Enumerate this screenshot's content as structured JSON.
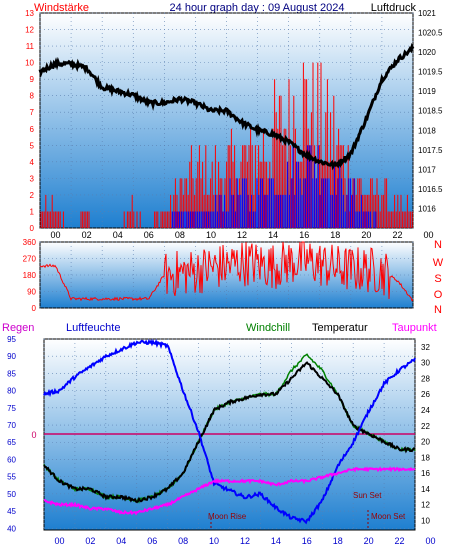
{
  "header": {
    "left_title": "Windstärke",
    "center_title": "24 hour graph day : 09 August 2024",
    "right_title": "Luftdruck"
  },
  "x_ticks": [
    "00",
    "02",
    "04",
    "06",
    "08",
    "10",
    "12",
    "14",
    "16",
    "18",
    "20",
    "22",
    "00"
  ],
  "colors": {
    "panel_top": "#ffffff",
    "panel_bottom": "#1e7fd0",
    "wind": "#ff0000",
    "gust": "#0000ff",
    "pressure": "#000000",
    "humidity": "#0000ff",
    "temperature": "#000000",
    "windchill": "#008000",
    "dewpoint": "#ff00ff",
    "rain": "#cc0055",
    "moon": "#990000"
  },
  "chart_data": [
    {
      "type": "line",
      "left_axis_label": "Windstärke",
      "right_axis_label": "Luftdruck",
      "left_ticks": [
        "13",
        "12",
        "11",
        "10",
        "9",
        "8",
        "7",
        "6",
        "5",
        "4",
        "3",
        "2",
        "1",
        "0"
      ],
      "right_ticks": [
        "1021",
        "1020.5",
        "1020",
        "1019.5",
        "1019",
        "1018.5",
        "1018",
        "1017.5",
        "1017",
        "1016.5",
        "1016"
      ],
      "ylim_left": [
        0,
        13
      ],
      "ylim_right": [
        1015.5,
        1021
      ],
      "x_hours": [
        0,
        1,
        2,
        3,
        4,
        5,
        6,
        7,
        8,
        9,
        10,
        11,
        12,
        13,
        14,
        15,
        16,
        17,
        18,
        19,
        20,
        21,
        22,
        23,
        24
      ],
      "series": [
        {
          "name": "Luftdruck",
          "values": [
            1019.5,
            1019.7,
            1019.7,
            1019.6,
            1019.1,
            1019.0,
            1018.9,
            1018.7,
            1018.7,
            1018.8,
            1018.7,
            1018.5,
            1018.5,
            1018.2,
            1018.0,
            1017.9,
            1017.7,
            1017.4,
            1017.2,
            1017.1,
            1017.4,
            1018.3,
            1019.3,
            1019.8,
            1020.1
          ]
        },
        {
          "name": "Windstärke",
          "values": [
            1,
            1,
            0,
            1,
            0,
            0,
            1,
            0,
            1,
            2,
            3,
            3,
            3,
            4,
            4,
            5,
            6,
            7,
            6,
            5,
            3,
            2,
            2,
            1,
            1
          ]
        },
        {
          "name": "Windböen",
          "values": [
            0,
            0,
            0,
            0,
            0,
            0,
            0,
            0,
            0,
            1,
            1,
            1,
            2,
            2,
            2,
            3,
            3,
            4,
            4,
            3,
            2,
            1,
            0,
            0,
            0
          ]
        }
      ]
    },
    {
      "type": "line",
      "right_axis_label": "N W S O N",
      "compass_labels": [
        "N",
        "W",
        "S",
        "O",
        "N"
      ],
      "left_ticks": [
        "360",
        "270",
        "180",
        "90",
        "0"
      ],
      "ylim": [
        0,
        360
      ],
      "x_hours": [
        0,
        1,
        2,
        3,
        4,
        5,
        6,
        7,
        8,
        9,
        10,
        11,
        12,
        13,
        14,
        15,
        16,
        17,
        18,
        19,
        20,
        21,
        22,
        23,
        24
      ],
      "series": [
        {
          "name": "Windrichtung",
          "values": [
            230,
            230,
            50,
            50,
            50,
            50,
            50,
            50,
            180,
            190,
            200,
            220,
            230,
            250,
            240,
            230,
            250,
            260,
            240,
            220,
            210,
            210,
            200,
            150,
            40
          ]
        }
      ]
    },
    {
      "type": "line",
      "legend_labels": {
        "rain": "Regen",
        "humidity": "Luftfeuchte",
        "windchill": "Windchill",
        "temperature": "Temperatur",
        "dewpoint": "Taupunkt"
      },
      "rain_marker": "0",
      "left_ticks": [
        "95",
        "90",
        "85",
        "80",
        "75",
        "70",
        "65",
        "60",
        "55",
        "50",
        "45",
        "40"
      ],
      "right_ticks": [
        "32",
        "30",
        "28",
        "26",
        "24",
        "22",
        "20",
        "18",
        "16",
        "14",
        "12",
        "10"
      ],
      "ylim_left": [
        39.5,
        95
      ],
      "ylim_right": [
        8.8,
        33
      ],
      "annotations": {
        "moon_rise": "Moon Rise",
        "sun_set": "Sun Set",
        "moon_set": "Moon Set"
      },
      "x_hours": [
        0,
        1,
        2,
        3,
        4,
        5,
        6,
        7,
        8,
        9,
        10,
        11,
        12,
        13,
        14,
        15,
        16,
        17,
        18,
        19,
        20,
        21,
        22,
        23,
        24
      ],
      "series": [
        {
          "name": "Luftfeuchte",
          "values": [
            79,
            80,
            84,
            87,
            90,
            92,
            94,
            94,
            93,
            80,
            68,
            53,
            51,
            49,
            50,
            46,
            43,
            42,
            48,
            58,
            65,
            74,
            82,
            86,
            89
          ]
        },
        {
          "name": "Temperatur",
          "values": [
            17,
            15,
            14,
            14,
            13,
            13,
            12.5,
            13,
            14,
            16,
            20,
            24,
            25,
            25.5,
            26,
            26,
            28,
            30,
            28,
            26,
            22,
            21,
            20,
            19,
            19
          ]
        },
        {
          "name": "Windchill",
          "values": [
            17,
            15,
            14,
            14,
            13,
            13,
            12.5,
            13,
            14,
            16,
            20,
            24,
            25,
            25.5,
            26,
            26,
            29,
            31,
            29,
            26,
            22,
            21,
            20,
            19,
            19
          ]
        },
        {
          "name": "Taupunkt",
          "values": [
            12.5,
            12,
            12,
            11.5,
            11.5,
            11,
            11,
            11.5,
            12,
            13,
            14,
            15,
            15,
            15,
            15,
            14.5,
            15,
            15,
            15.5,
            16,
            16.5,
            16.5,
            16.5,
            16.5,
            16.5
          ]
        }
      ]
    }
  ]
}
